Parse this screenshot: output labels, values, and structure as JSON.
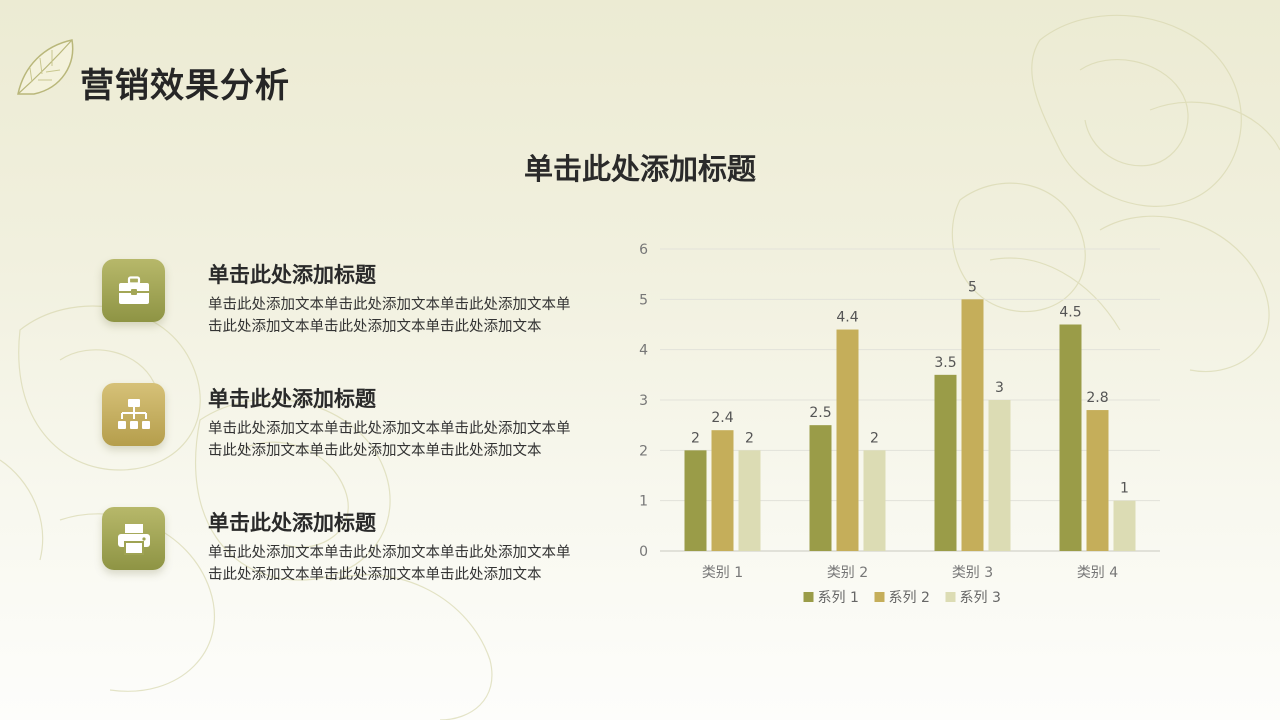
{
  "page": {
    "title": "营销效果分析",
    "subtitle": "单击此处添加标题"
  },
  "features": [
    {
      "title": "单击此处添加标题",
      "text": "单击此处添加文本单击此处添加文本单击此处添加文本单击此处添加文本单击此处添加文本单击此处添加文本",
      "icon": "briefcase-icon"
    },
    {
      "title": "单击此处添加标题",
      "text": "单击此处添加文本单击此处添加文本单击此处添加文本单击此处添加文本单击此处添加文本单击此处添加文本",
      "icon": "org-chart-icon"
    },
    {
      "title": "单击此处添加标题",
      "text": "单击此处添加文本单击此处添加文本单击此处添加文本单击此处添加文本单击此处添加文本单击此处添加文本",
      "icon": "printer-icon"
    }
  ],
  "colors": {
    "series1": "#9a9c48",
    "series2": "#c5ae5a",
    "series3": "#dcdcb4",
    "icon_olive": "#9fa353",
    "icon_gold": "#c8b063"
  },
  "chart_data": {
    "type": "bar",
    "categories": [
      "类别 1",
      "类别 2",
      "类别 3",
      "类别 4"
    ],
    "series": [
      {
        "name": "系列 1",
        "values": [
          2,
          2.5,
          3.5,
          4.5
        ]
      },
      {
        "name": "系列 2",
        "values": [
          2.4,
          4.4,
          5,
          2.8
        ]
      },
      {
        "name": "系列 3",
        "values": [
          2,
          2,
          3,
          1
        ]
      }
    ],
    "ylim": [
      0,
      6
    ],
    "yticks": [
      0,
      1,
      2,
      3,
      4,
      5,
      6
    ],
    "grid": true,
    "legend": "bottom",
    "data_labels": true
  }
}
